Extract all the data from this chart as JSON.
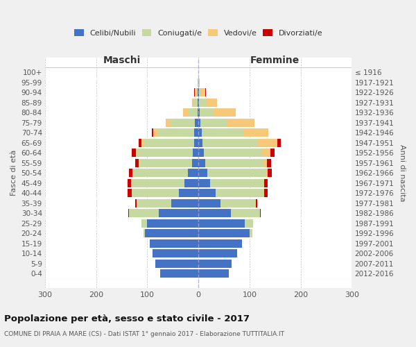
{
  "age_groups": [
    "0-4",
    "5-9",
    "10-14",
    "15-19",
    "20-24",
    "25-29",
    "30-34",
    "35-39",
    "40-44",
    "45-49",
    "50-54",
    "55-59",
    "60-64",
    "65-69",
    "70-74",
    "75-79",
    "80-84",
    "85-89",
    "90-94",
    "95-99",
    "100+"
  ],
  "birth_years": [
    "2012-2016",
    "2007-2011",
    "2002-2006",
    "1997-2001",
    "1992-1996",
    "1987-1991",
    "1982-1986",
    "1977-1981",
    "1972-1976",
    "1967-1971",
    "1962-1966",
    "1957-1961",
    "1952-1956",
    "1947-1951",
    "1942-1946",
    "1937-1941",
    "1932-1936",
    "1927-1931",
    "1922-1926",
    "1917-1921",
    "≤ 1916"
  ],
  "males": {
    "celibi": [
      75,
      85,
      90,
      95,
      105,
      100,
      78,
      53,
      38,
      28,
      20,
      12,
      11,
      9,
      8,
      7,
      2,
      1,
      1,
      0,
      0
    ],
    "coniugati": [
      0,
      0,
      0,
      0,
      3,
      12,
      58,
      68,
      93,
      103,
      108,
      103,
      108,
      98,
      72,
      47,
      18,
      7,
      4,
      1,
      0
    ],
    "vedovi": [
      0,
      0,
      0,
      0,
      0,
      0,
      0,
      0,
      0,
      1,
      1,
      2,
      3,
      5,
      8,
      10,
      10,
      5,
      2,
      0,
      0
    ],
    "divorziati": [
      0,
      0,
      0,
      0,
      0,
      0,
      1,
      3,
      7,
      7,
      7,
      7,
      8,
      5,
      3,
      0,
      0,
      0,
      2,
      0,
      0
    ]
  },
  "females": {
    "nubili": [
      60,
      65,
      75,
      85,
      100,
      90,
      63,
      43,
      33,
      23,
      18,
      13,
      10,
      8,
      6,
      4,
      2,
      1,
      1,
      0,
      0
    ],
    "coniugate": [
      0,
      0,
      0,
      0,
      5,
      17,
      58,
      68,
      93,
      103,
      113,
      113,
      113,
      108,
      83,
      53,
      28,
      13,
      4,
      1,
      0
    ],
    "vedove": [
      0,
      0,
      0,
      0,
      0,
      0,
      0,
      1,
      2,
      2,
      4,
      8,
      18,
      38,
      48,
      53,
      43,
      23,
      8,
      1,
      0
    ],
    "divorziate": [
      0,
      0,
      0,
      0,
      0,
      0,
      1,
      3,
      8,
      8,
      8,
      8,
      8,
      7,
      0,
      0,
      0,
      0,
      2,
      1,
      0
    ]
  },
  "color_celibi": "#4472c4",
  "color_coniugati": "#c5d9a0",
  "color_vedovi": "#f5c87a",
  "color_divorziati": "#cc0000",
  "xlim": 300,
  "title_main": "Popolazione per età, sesso e stato civile - 2017",
  "title_sub": "COMUNE DI PRAIA A MARE (CS) - Dati ISTAT 1° gennaio 2017 - Elaborazione TUTTITALIA.IT",
  "ylabel_left": "Fasce di età",
  "ylabel_right": "Anni di nascita",
  "header_left": "Maschi",
  "header_right": "Femmine",
  "bg_color": "#f0f0f0",
  "plot_bg": "#ffffff"
}
